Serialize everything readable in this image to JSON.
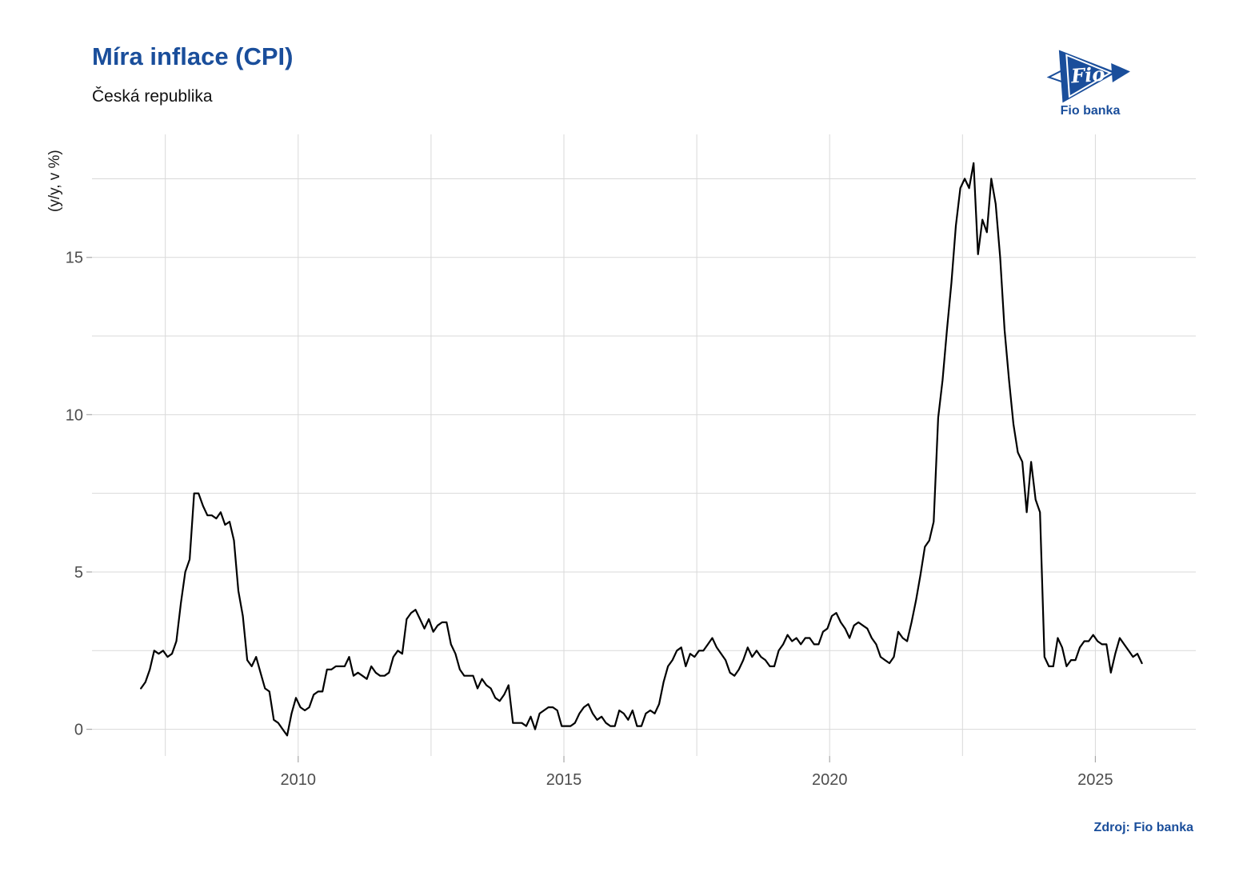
{
  "header": {
    "title": "Míra inflace (CPI)",
    "subtitle": "Česká republika"
  },
  "logo": {
    "mark": "Fio",
    "wordmark": "Fio banka",
    "color": "#1a4e9b"
  },
  "footer": {
    "source": "Zdroj: Fio banka"
  },
  "colors": {
    "accent_blue": "#1a4e9b",
    "line": "#000000",
    "grid": "#d9d9d9",
    "tick_mark": "#a8a8a8",
    "tick_text": "#4d4d4d",
    "background": "#ffffff"
  },
  "chart_data": {
    "type": "line",
    "title": "Míra inflace (CPI)",
    "subtitle": "Česká republika",
    "xlabel": "",
    "ylabel": "(y/y, v %)",
    "unit": "%",
    "frequency": "monthly",
    "start_year": 2007,
    "start_month": 1,
    "end_year": 2025,
    "end_month": 11,
    "series": [
      {
        "name": "CPI y/y (%)",
        "values": [
          1.3,
          1.5,
          1.9,
          2.5,
          2.4,
          2.5,
          2.3,
          2.4,
          2.8,
          4.0,
          5.0,
          5.4,
          7.5,
          7.5,
          7.1,
          6.8,
          6.8,
          6.7,
          6.9,
          6.5,
          6.6,
          6.0,
          4.4,
          3.6,
          2.2,
          2.0,
          2.3,
          1.8,
          1.3,
          1.2,
          0.3,
          0.2,
          0.0,
          -0.2,
          0.5,
          1.0,
          0.7,
          0.6,
          0.7,
          1.1,
          1.2,
          1.2,
          1.9,
          1.9,
          2.0,
          2.0,
          2.0,
          2.3,
          1.7,
          1.8,
          1.7,
          1.6,
          2.0,
          1.8,
          1.7,
          1.7,
          1.8,
          2.3,
          2.5,
          2.4,
          3.5,
          3.7,
          3.8,
          3.5,
          3.2,
          3.5,
          3.1,
          3.3,
          3.4,
          3.4,
          2.7,
          2.4,
          1.9,
          1.7,
          1.7,
          1.7,
          1.3,
          1.6,
          1.4,
          1.3,
          1.0,
          0.9,
          1.1,
          1.4,
          0.2,
          0.2,
          0.2,
          0.1,
          0.4,
          0.0,
          0.5,
          0.6,
          0.7,
          0.7,
          0.6,
          0.1,
          0.1,
          0.1,
          0.2,
          0.5,
          0.7,
          0.8,
          0.5,
          0.3,
          0.4,
          0.2,
          0.1,
          0.1,
          0.6,
          0.5,
          0.3,
          0.6,
          0.1,
          0.1,
          0.5,
          0.6,
          0.5,
          0.8,
          1.5,
          2.0,
          2.2,
          2.5,
          2.6,
          2.0,
          2.4,
          2.3,
          2.5,
          2.5,
          2.7,
          2.9,
          2.6,
          2.4,
          2.2,
          1.8,
          1.7,
          1.9,
          2.2,
          2.6,
          2.3,
          2.5,
          2.3,
          2.2,
          2.0,
          2.0,
          2.5,
          2.7,
          3.0,
          2.8,
          2.9,
          2.7,
          2.9,
          2.9,
          2.7,
          2.7,
          3.1,
          3.2,
          3.6,
          3.7,
          3.4,
          3.2,
          2.9,
          3.3,
          3.4,
          3.3,
          3.2,
          2.9,
          2.7,
          2.3,
          2.2,
          2.1,
          2.3,
          3.1,
          2.9,
          2.8,
          3.4,
          4.1,
          4.9,
          5.8,
          6.0,
          6.6,
          9.9,
          11.1,
          12.7,
          14.2,
          16.0,
          17.2,
          17.5,
          17.2,
          18.0,
          15.1,
          16.2,
          15.8,
          17.5,
          16.7,
          15.0,
          12.7,
          11.1,
          9.7,
          8.8,
          8.5,
          6.9,
          8.5,
          7.3,
          6.9,
          2.3,
          2.0,
          2.0,
          2.9,
          2.6,
          2.0,
          2.2,
          2.2,
          2.6,
          2.8,
          2.8,
          3.0,
          2.8,
          2.7,
          2.7,
          1.8,
          2.4,
          2.9,
          2.7,
          2.5,
          2.3,
          2.4,
          2.1
        ]
      }
    ],
    "yticks": [
      0,
      5,
      10,
      15
    ],
    "y_minor_gridlines": [
      2.5,
      7.5,
      12.5,
      17.5
    ],
    "xticks": [
      2010,
      2015,
      2020,
      2025
    ],
    "x_minor_gridlines": [
      2007.5,
      2012.5,
      2017.5,
      2022.5
    ],
    "ylim": [
      -0.85,
      18.91
    ],
    "xlim": [
      2006.12,
      2026.89
    ],
    "grid": true,
    "legend": false
  }
}
